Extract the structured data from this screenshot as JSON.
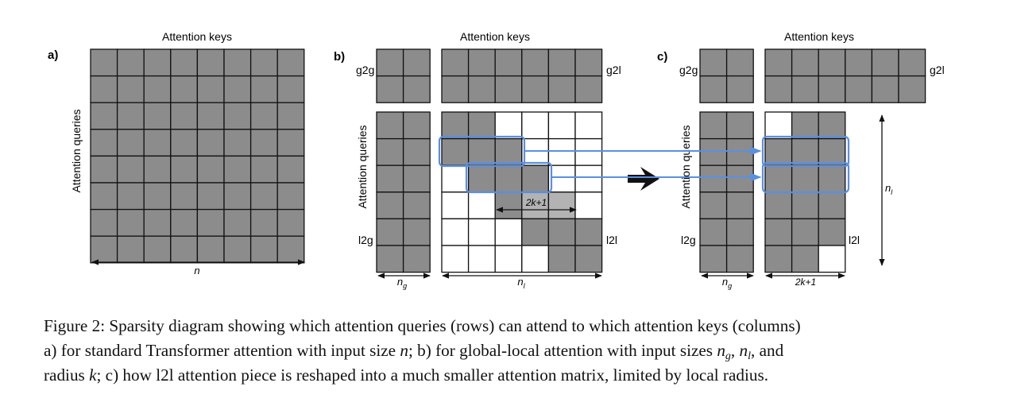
{
  "panels": {
    "a": {
      "label": "a)",
      "keys_label": "Attention keys",
      "queries_label": "Attention queries",
      "size_label": "n"
    },
    "b": {
      "label": "b)",
      "keys_label": "Attention keys",
      "queries_label": "Attention queries",
      "g2g": "g2g",
      "g2l": "g2l",
      "l2g": "l2g",
      "l2l": "l2l",
      "radius_label": "2k+1",
      "ng_label": "n",
      "ng_sub": "g",
      "nl_label": "n",
      "nl_sub": "l"
    },
    "c": {
      "label": "c)",
      "keys_label": "Attention keys",
      "queries_label": "Attention queries",
      "g2g": "g2g",
      "g2l": "g2l",
      "l2g": "l2g",
      "l2l": "l2l",
      "ng_label": "n",
      "ng_sub": "g",
      "width_label": "2k+1",
      "nl_label": "n",
      "nl_sub": "l"
    }
  },
  "colors": {
    "cell_fill": "#8c8c8c",
    "highlight_fill": "#b3b3b3",
    "grid": "#111111",
    "arrow_blue": "#5b8fe0"
  },
  "caption": {
    "line1": "Figure 2: Sparsity diagram showing which attention queries (rows) can attend to which attention keys (columns)",
    "line2_a": "a) for standard Transformer attention with input size ",
    "line2_n": "n",
    "line2_b": "; b) for global-local attention with input sizes ",
    "line2_ng": "n",
    "line2_ng_sub": "g",
    "line2_c": ", ",
    "line2_nl": "n",
    "line2_nl_sub": "l",
    "line2_d": ", and",
    "line3_a": "radius ",
    "line3_k": "k",
    "line3_b": "; c) how l2l attention piece is reshaped into a much smaller attention matrix, limited by local radius."
  }
}
